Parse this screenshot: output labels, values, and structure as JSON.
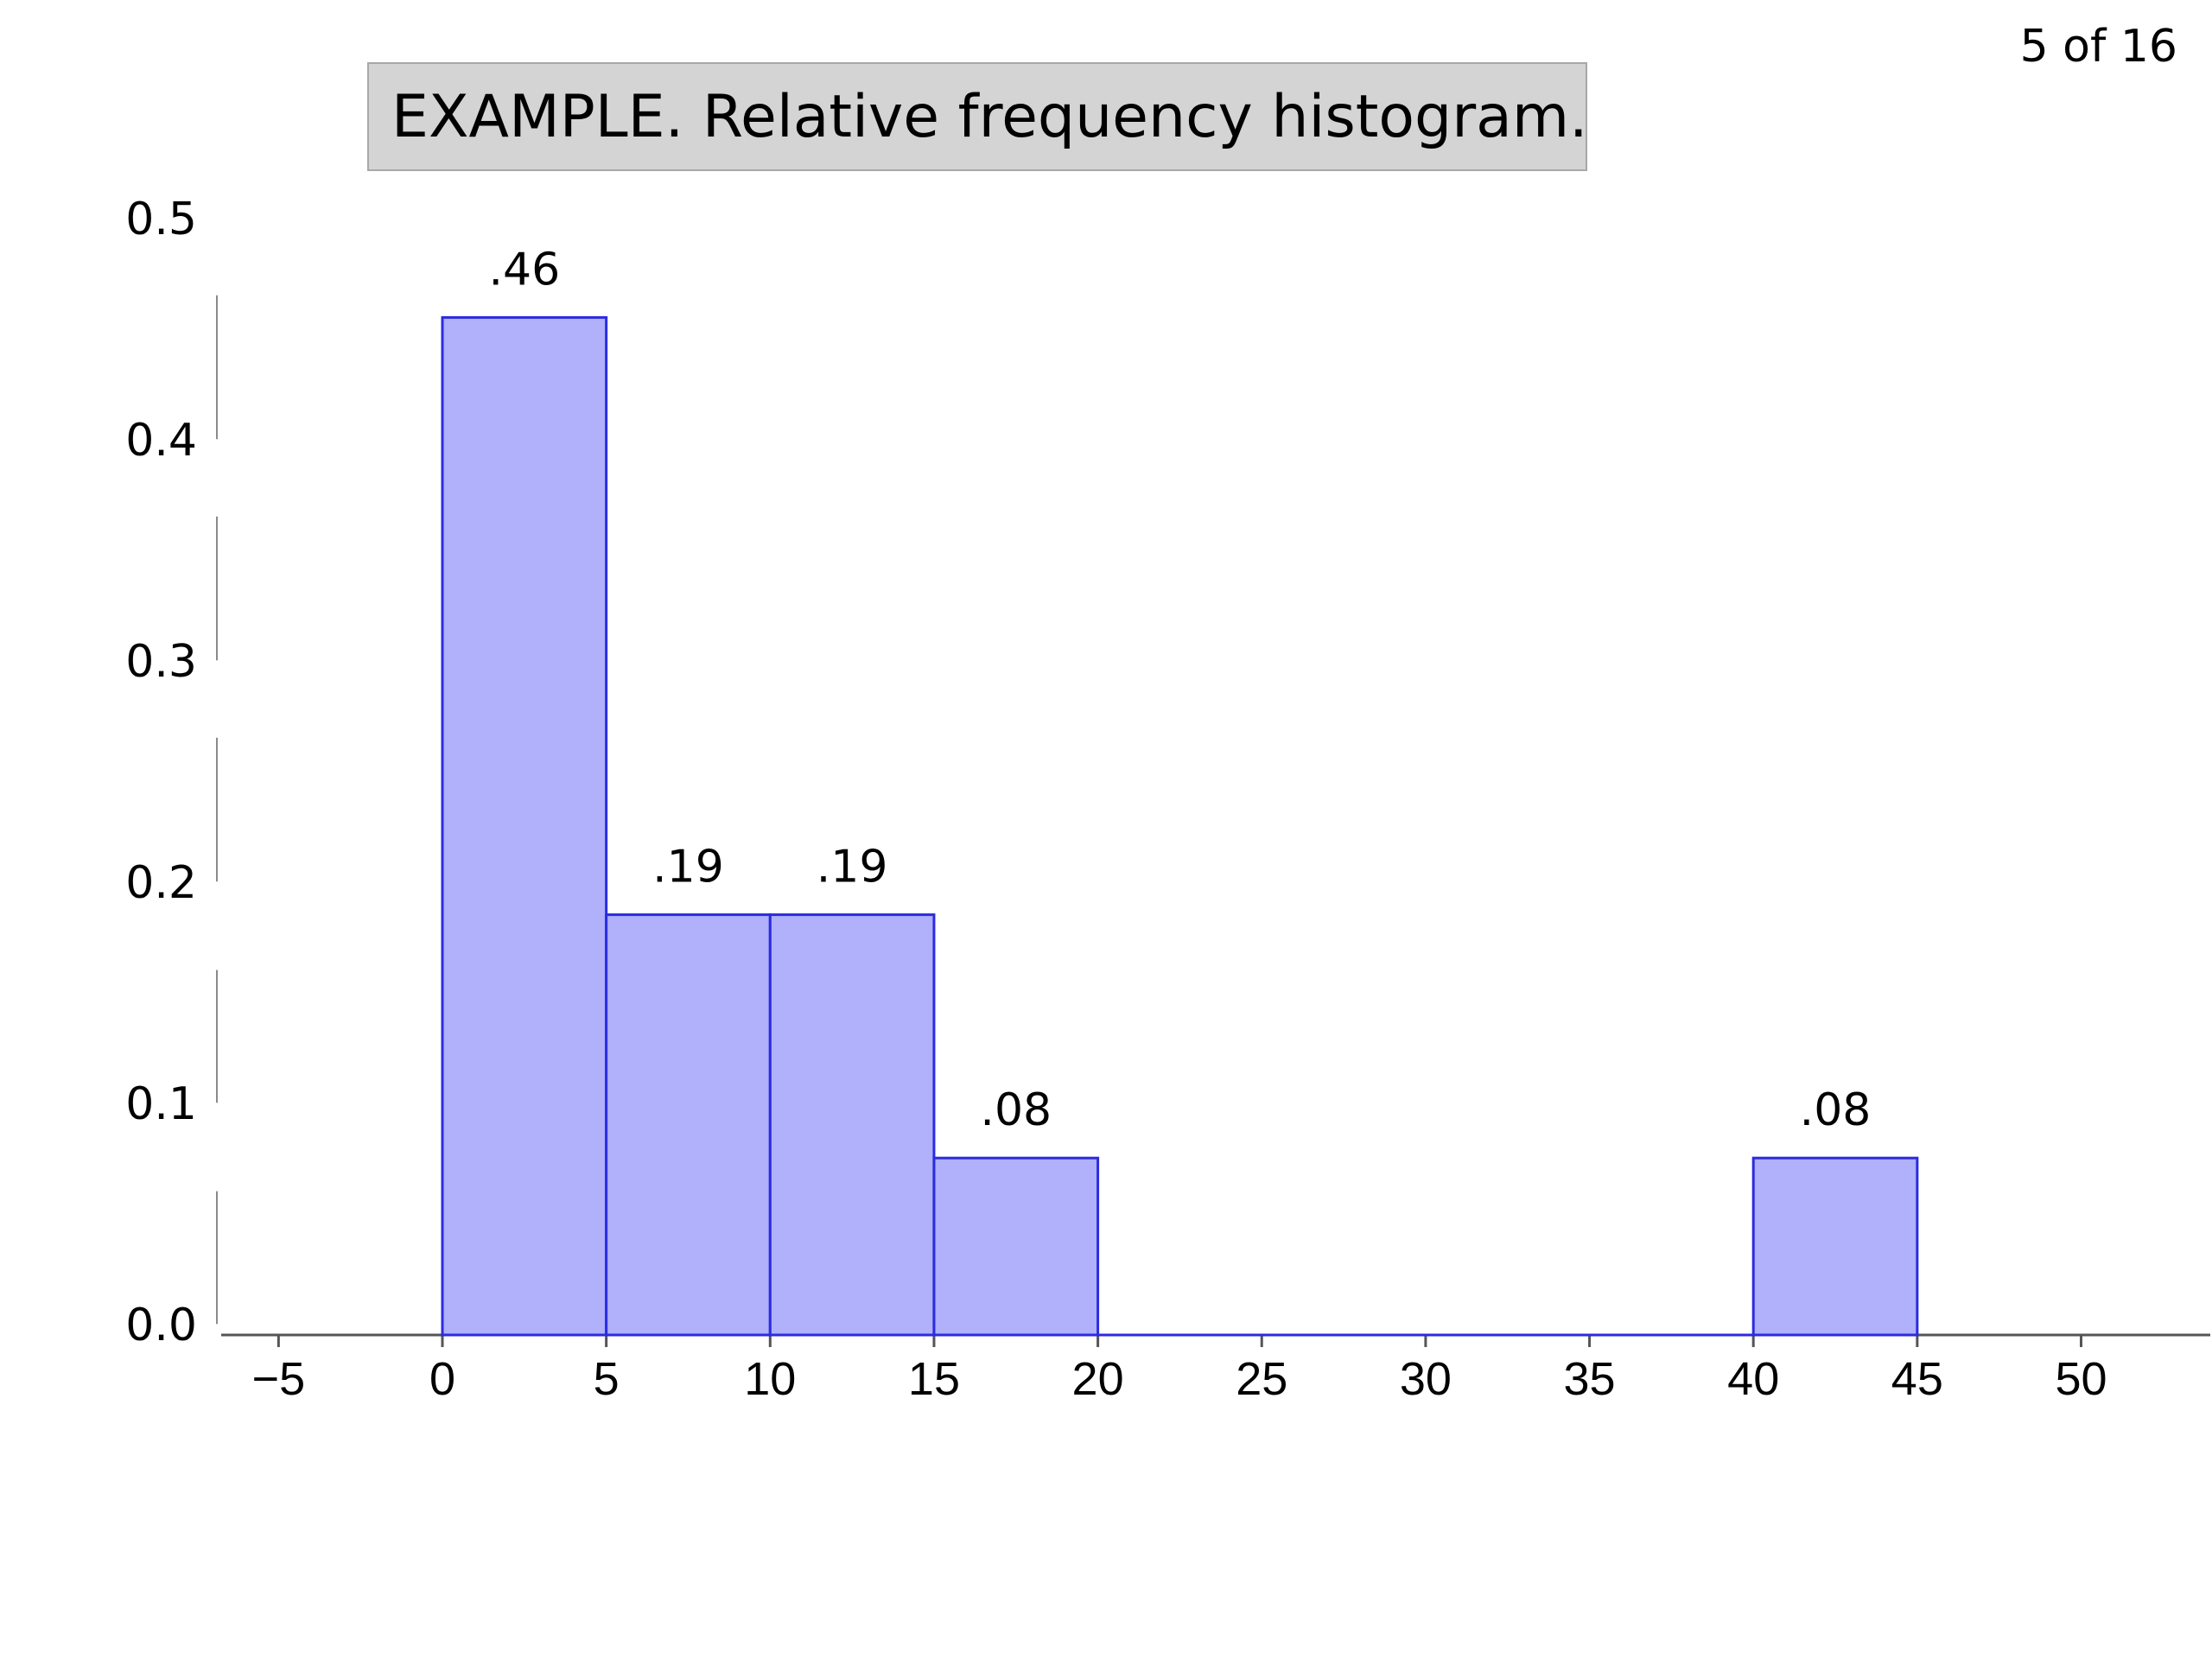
{
  "page": {
    "indicator": "5 of 16"
  },
  "chart_data": {
    "type": "bar",
    "title": "EXAMPLE. Relative frequency histogram.",
    "xlabel": "",
    "ylabel": "",
    "bins": [
      {
        "start": 0,
        "end": 5,
        "value": 0.46,
        "label": ".46"
      },
      {
        "start": 5,
        "end": 10,
        "value": 0.19,
        "label": ".19"
      },
      {
        "start": 10,
        "end": 15,
        "value": 0.19,
        "label": ".19"
      },
      {
        "start": 15,
        "end": 20,
        "value": 0.08,
        "label": ".08"
      },
      {
        "start": 20,
        "end": 25,
        "value": 0,
        "label": ""
      },
      {
        "start": 25,
        "end": 30,
        "value": 0,
        "label": ""
      },
      {
        "start": 30,
        "end": 35,
        "value": 0,
        "label": ""
      },
      {
        "start": 35,
        "end": 40,
        "value": 0,
        "label": ""
      },
      {
        "start": 40,
        "end": 45,
        "value": 0.08,
        "label": ".08"
      }
    ],
    "xticks": [
      {
        "value": -5,
        "label": "−5"
      },
      {
        "value": 0,
        "label": "0"
      },
      {
        "value": 5,
        "label": "5"
      },
      {
        "value": 10,
        "label": "10"
      },
      {
        "value": 15,
        "label": "15"
      },
      {
        "value": 20,
        "label": "20"
      },
      {
        "value": 25,
        "label": "25"
      },
      {
        "value": 30,
        "label": "30"
      },
      {
        "value": 35,
        "label": "35"
      },
      {
        "value": 40,
        "label": "40"
      },
      {
        "value": 45,
        "label": "45"
      },
      {
        "value": 50,
        "label": "50"
      }
    ],
    "yticks": [
      {
        "value": 0.0,
        "label": "0.0"
      },
      {
        "value": 0.1,
        "label": "0.1"
      },
      {
        "value": 0.2,
        "label": "0.2"
      },
      {
        "value": 0.3,
        "label": "0.3"
      },
      {
        "value": 0.4,
        "label": "0.4"
      },
      {
        "value": 0.5,
        "label": "0.5"
      }
    ],
    "xlim": [
      -5,
      50
    ],
    "ylim": [
      0,
      0.5
    ],
    "grid": false,
    "colors": {
      "bar_fill": "#b0b0fb",
      "bar_stroke": "#2b2be0",
      "axis": "#555555"
    }
  }
}
